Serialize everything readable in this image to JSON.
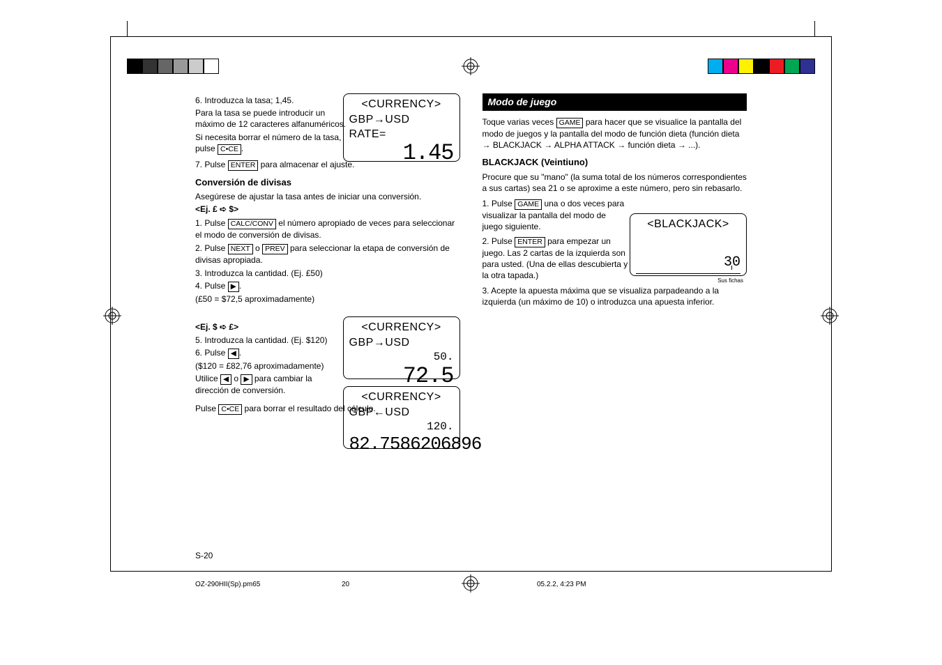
{
  "page": {
    "footer_page": "S-20",
    "meta_file": "OZ-290HII(Sp).pm65",
    "meta_pagenum": "20",
    "meta_timestamp": "05.2.2, 4:23 PM"
  },
  "colorbar_left": [
    "#000000",
    "#333333",
    "#666666",
    "#999999",
    "#cccccc",
    "#ffffff"
  ],
  "colorbar_right": [
    "#00aeef",
    "#ec008c",
    "#fff200",
    "#000000",
    "#ed1c24",
    "#00a651",
    "#2e3192"
  ],
  "left": {
    "s6_lead": "6. Introduzca la tasa; 1,45.",
    "s6_a": "Para la tasa se puede introducir un máximo de 12 caracteres alfanuméricos.",
    "s6_b1": "Si necesita borrar el número de la tasa, pulse ",
    "s6_b_key": "C•CE",
    "s7_a": "7. Pulse ",
    "s7_key": "ENTER",
    "s7_b": " para almacenar el ajuste.",
    "h1": "Conversión de divisas",
    "p1": "Asegúrese de ajustar la tasa antes de iniciar una conversión.",
    "ex1": "<Ej. £ ➪  $>",
    "c1_a": "1. Pulse ",
    "c1_key": "CALC/CONV",
    "c1_b": " el número apropiado de veces para seleccionar el modo de conversión de divisas.",
    "c2_a": "2. Pulse ",
    "c2_k1": "NEXT",
    "c2_mid": " o ",
    "c2_k2": "PREV",
    "c2_b": " para seleccionar la etapa de conversión de divisas apropiada.",
    "c3": "3. Introduzca la cantidad. (Ej. £50)",
    "c4_a": "4. Pulse ",
    "c4_key": "▶",
    "c4_b": "(£50 = $72,5 aproximadamente)",
    "ex2": "<Ej. $ ➪  £>",
    "c5": "5. Introduzca la cantidad. (Ej. $120)",
    "c6_a": "6. Pulse ",
    "c6_key": "◀",
    "c6_b": "($120 = £82,76 aproximadamente)",
    "c6_c_a": "Utilice ",
    "c6_c_k1": "◀",
    "c6_c_mid": " o ",
    "c6_c_k2": "▶",
    "c6_c_b": " para cambiar la dirección de conversión.",
    "c_end_a": "Pulse ",
    "c_end_key": "C•CE",
    "c_end_b": " para borrar el resultado del cálculo.",
    "lcd1": {
      "l1": "<CURRENCY>",
      "l2": "GBP→USD",
      "l3": "RATE=",
      "big": "1.45",
      "bg": "#ffffff"
    },
    "lcd2": {
      "l1": "<CURRENCY>",
      "l2": "GBP→USD",
      "med": "50.",
      "big": "72.5",
      "bg": "#ffffff"
    },
    "lcd3": {
      "l1": "<CURRENCY>",
      "l2": "GBP←USD",
      "med": "120.",
      "big": "82.7586206896",
      "bg": "#ffffff"
    }
  },
  "right": {
    "title": "Modo de juego",
    "intro_a": "Toque varias veces ",
    "intro_key": "GAME",
    "intro_b": " para hacer que se visualice la pantalla del modo de juegos y la pantalla del modo de función dieta (función dieta → BLACKJACK → ALPHA ATTACK → función dieta → ...).",
    "h2": "BLACKJACK (Veintiuno)",
    "p1": "Procure que su \"mano\" (la suma total de los números correspondientes a sus cartas) sea 21 o se aproxime a este número, pero sin rebasarlo.",
    "b1_a": "1. Pulse ",
    "b1_key": "GAME",
    "b1_b": " una o dos veces para visualizar la pantalla del modo de juego siguiente.",
    "b2_a": "2. Pulse ",
    "b2_key": "ENTER",
    "b2_b": " para empezar un juego. Las 2 cartas de la izquierda son para usted. (Una de ellas descubierta y la otra tapada.)",
    "b3": "3. Acepte la apuesta máxima que se visualiza parpadeando a la izquierda (un máximo de 10) o introduzca una apuesta inferior.",
    "lcd": {
      "l1": "<BLACKJACK>",
      "val": "30",
      "note": "Sus fichas",
      "bg": "#ffffff"
    }
  }
}
